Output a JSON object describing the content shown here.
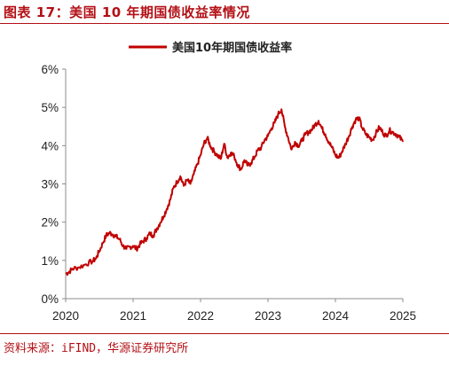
{
  "figure": {
    "title": "图表 17：美国 10 年期国债收益率情况",
    "source": "资料来源：iFIND，华源证券研究所"
  },
  "colors": {
    "accent": "#b31016",
    "series": "#c00000",
    "axis": "#8c8c8c"
  },
  "chart_data": {
    "type": "line",
    "title": "",
    "xlabel": "",
    "ylabel": "",
    "legend_position": "top-center",
    "grid": false,
    "xlim": [
      2020.0,
      2025.0
    ],
    "ylim": [
      0,
      6
    ],
    "x_ticks": [
      2020,
      2021,
      2022,
      2023,
      2024,
      2025
    ],
    "x_tick_labels": [
      "2020",
      "2021",
      "2022",
      "2023",
      "2024",
      "2025"
    ],
    "y_ticks": [
      0,
      1,
      2,
      3,
      4,
      5,
      6
    ],
    "y_tick_labels": [
      "0%",
      "1%",
      "2%",
      "3%",
      "4%",
      "5%",
      "6%"
    ],
    "series": [
      {
        "name": "美国10年期国债收益率",
        "color": "#c00000",
        "x": [
          2020.0,
          2020.05,
          2020.1,
          2020.2,
          2020.3,
          2020.4,
          2020.45,
          2020.5,
          2020.55,
          2020.6,
          2020.65,
          2020.7,
          2020.75,
          2020.8,
          2020.85,
          2020.9,
          2020.95,
          2021.0,
          2021.05,
          2021.1,
          2021.15,
          2021.2,
          2021.25,
          2021.3,
          2021.35,
          2021.4,
          2021.45,
          2021.5,
          2021.55,
          2021.6,
          2021.65,
          2021.7,
          2021.75,
          2021.8,
          2021.85,
          2021.9,
          2021.95,
          2022.0,
          2022.05,
          2022.1,
          2022.15,
          2022.2,
          2022.25,
          2022.3,
          2022.35,
          2022.4,
          2022.45,
          2022.5,
          2022.55,
          2022.6,
          2022.65,
          2022.7,
          2022.75,
          2022.8,
          2022.85,
          2022.9,
          2022.95,
          2023.0,
          2023.05,
          2023.1,
          2023.15,
          2023.2,
          2023.25,
          2023.3,
          2023.35,
          2023.4,
          2023.45,
          2023.5,
          2023.55,
          2023.6,
          2023.65,
          2023.7,
          2023.75,
          2023.8,
          2023.85,
          2023.9,
          2023.95,
          2024.0,
          2024.05,
          2024.1,
          2024.15,
          2024.2,
          2024.25,
          2024.3,
          2024.35,
          2024.4,
          2024.45,
          2024.5,
          2024.55,
          2024.6,
          2024.65,
          2024.7,
          2024.75,
          2024.8,
          2024.85,
          2024.9,
          2024.95,
          2025.0
        ],
        "values": [
          0.65,
          0.7,
          0.78,
          0.82,
          0.9,
          0.98,
          1.05,
          1.25,
          1.45,
          1.65,
          1.72,
          1.68,
          1.62,
          1.55,
          1.38,
          1.3,
          1.35,
          1.38,
          1.3,
          1.42,
          1.5,
          1.58,
          1.7,
          1.65,
          1.82,
          1.98,
          2.15,
          2.35,
          2.58,
          2.9,
          3.05,
          3.2,
          2.95,
          3.1,
          3.0,
          3.25,
          3.5,
          3.75,
          4.05,
          4.2,
          3.98,
          3.85,
          3.75,
          3.65,
          4.05,
          3.68,
          3.82,
          3.72,
          3.5,
          3.38,
          3.62,
          3.48,
          3.55,
          3.7,
          3.88,
          3.95,
          4.15,
          4.25,
          4.45,
          4.6,
          4.82,
          4.95,
          4.5,
          4.2,
          3.9,
          4.1,
          4.0,
          4.12,
          4.28,
          4.35,
          4.42,
          4.55,
          4.65,
          4.45,
          4.3,
          4.1,
          3.95,
          3.75,
          3.68,
          3.85,
          4.05,
          4.25,
          4.5,
          4.68,
          4.72,
          4.45,
          4.3,
          4.22,
          4.15,
          4.32,
          4.48,
          4.35,
          4.25,
          4.4,
          4.35,
          4.3,
          4.22,
          4.1
        ]
      }
    ]
  }
}
